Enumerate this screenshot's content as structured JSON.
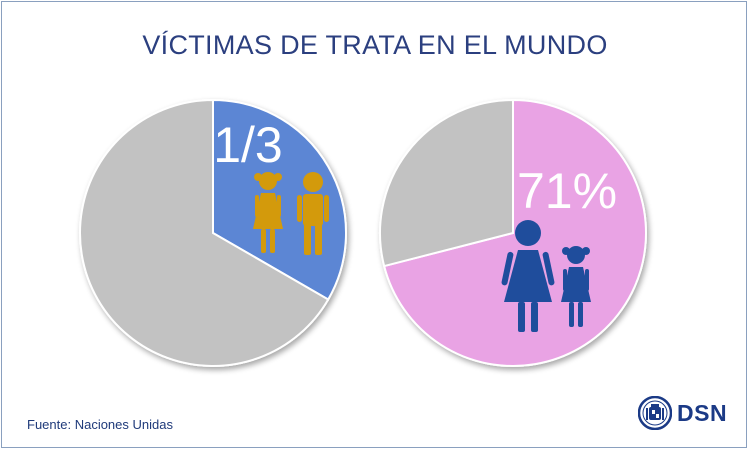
{
  "title": "VÍCTIMAS DE TRATA EN EL MUNDO",
  "source": "Fuente: Naciones Unidas",
  "logo": {
    "text": "DSN",
    "icon": "coat-of-arms-icon"
  },
  "colors": {
    "blue_slice": "#5b86d4",
    "pink_slice": "#e9a3e4",
    "grey_slice": "#c2c2c2",
    "child_figures": "#d39a0c",
    "women_figures": "#1f4d9c",
    "brand": "#1b3a86"
  },
  "chart_data": [
    {
      "type": "pie",
      "label": "1/3",
      "slices": [
        {
          "value": 0.3333,
          "color": "#5b86d4",
          "highlight": true
        },
        {
          "value": 0.6667,
          "color": "#c2c2c2"
        }
      ],
      "icons": [
        "girl-icon",
        "boy-icon"
      ]
    },
    {
      "type": "pie",
      "label": "71%",
      "slices": [
        {
          "value": 71,
          "color": "#e9a3e4",
          "highlight": true
        },
        {
          "value": 29,
          "color": "#c2c2c2"
        }
      ],
      "icons": [
        "woman-icon",
        "girl-icon"
      ]
    }
  ]
}
